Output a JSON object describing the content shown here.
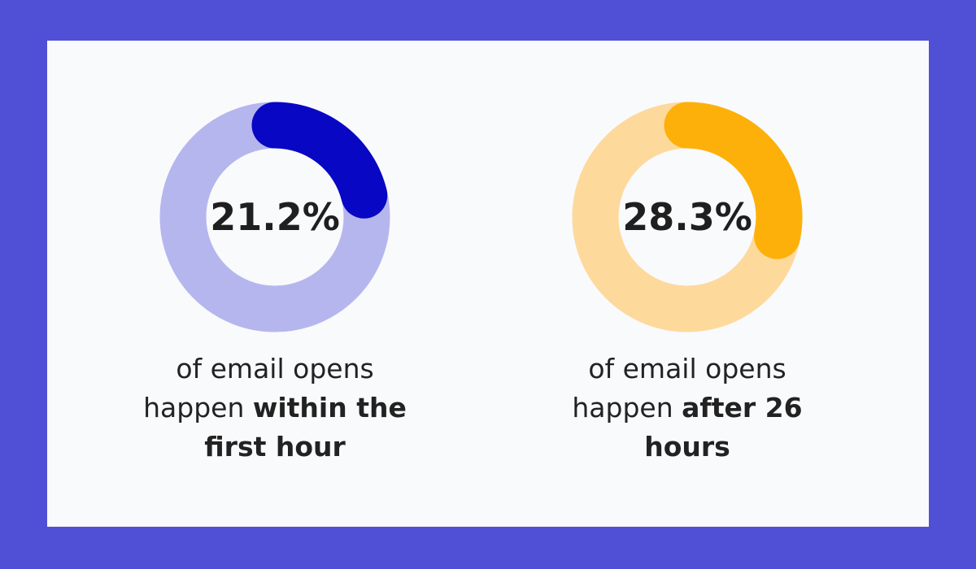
{
  "chart_data": [
    {
      "type": "donut",
      "values": [
        21.2
      ],
      "value_labels": [
        "21.2%"
      ],
      "ylim": [
        0,
        100
      ],
      "color": "#0707c4",
      "track_color": "#b6b6ee",
      "caption": {
        "text": "of email opens happen",
        "emphasis": "within the first hour"
      }
    },
    {
      "type": "donut",
      "values": [
        28.3
      ],
      "value_labels": [
        "28.3%"
      ],
      "ylim": [
        0,
        100
      ],
      "color": "#fdb009",
      "track_color": "#fed99c",
      "caption": {
        "text": "of email opens happen",
        "emphasis": "after 26 hours"
      }
    }
  ]
}
